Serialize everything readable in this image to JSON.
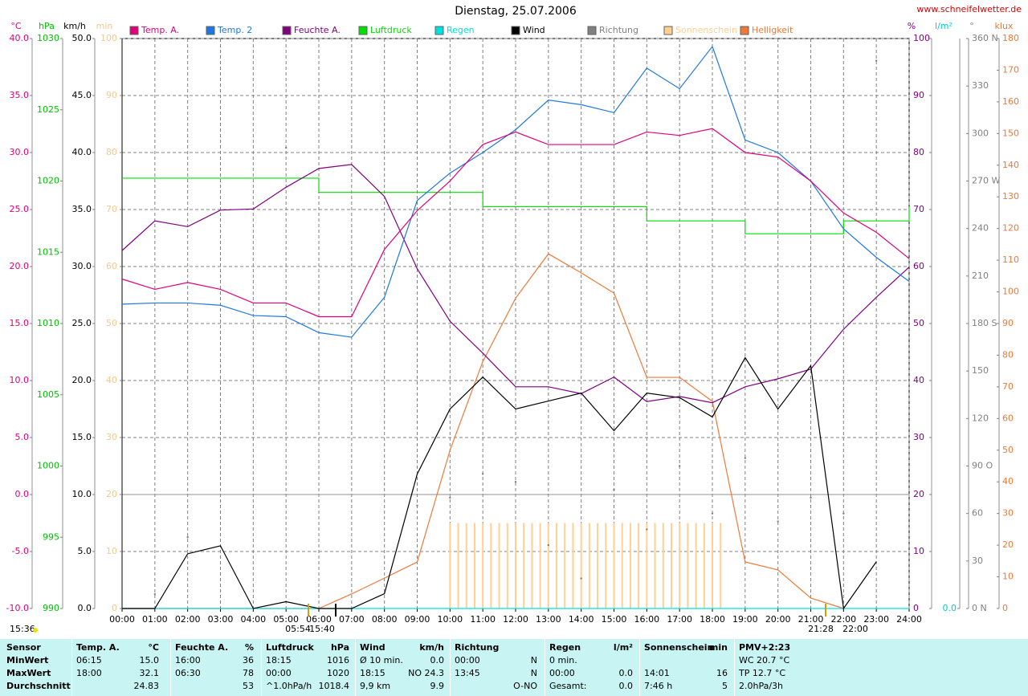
{
  "chart_data": {
    "type": "line",
    "title": "Dienstag, 25.07.2006",
    "source": "www.schneifelwetter.de",
    "xlim": [
      0,
      24
    ],
    "xticks": [
      {
        "value": 0,
        "label": "00:00"
      },
      {
        "value": 1,
        "label": "01:00"
      },
      {
        "value": 2,
        "label": "02:00"
      },
      {
        "value": 3,
        "label": "03:00"
      },
      {
        "value": 4,
        "label": "04:00"
      },
      {
        "value": 5,
        "label": "05:00"
      },
      {
        "value": 6,
        "label": "06:00"
      },
      {
        "value": 7,
        "label": "07:00"
      },
      {
        "value": 8,
        "label": "08:00"
      },
      {
        "value": 9,
        "label": "09:00"
      },
      {
        "value": 10,
        "label": "10:00"
      },
      {
        "value": 11,
        "label": "11:00"
      },
      {
        "value": 12,
        "label": "12:00"
      },
      {
        "value": 13,
        "label": "13:00"
      },
      {
        "value": 14,
        "label": "14:00"
      },
      {
        "value": 15,
        "label": "15:00"
      },
      {
        "value": 16,
        "label": "16:00"
      },
      {
        "value": 17,
        "label": "17:00"
      },
      {
        "value": 18,
        "label": "18:00"
      },
      {
        "value": 19,
        "label": "19:00"
      },
      {
        "value": 20,
        "label": "20:00"
      },
      {
        "value": 21,
        "label": "21:00"
      },
      {
        "value": 22,
        "label": "22:00"
      },
      {
        "value": 23,
        "label": "23:00"
      },
      {
        "value": 24,
        "label": "24:00"
      }
    ],
    "grid": true,
    "axes": [
      {
        "id": "temp",
        "label": "°C",
        "color": "#e0007a",
        "lim": [
          -10,
          40
        ],
        "ticks": [
          {
            "value": 40,
            "label": "40.0"
          },
          {
            "value": 35,
            "label": "35.0"
          },
          {
            "value": 30,
            "label": "30.0"
          },
          {
            "value": 25,
            "label": "25.0"
          },
          {
            "value": 20,
            "label": "20.0"
          },
          {
            "value": 15,
            "label": "15.0"
          },
          {
            "value": 10,
            "label": "10.0"
          },
          {
            "value": 5,
            "label": "5.0"
          },
          {
            "value": 0,
            "label": "0.0"
          },
          {
            "value": -5,
            "label": "-5.0"
          },
          {
            "value": -10,
            "label": "-10.0"
          }
        ]
      },
      {
        "id": "press",
        "label": "hPa",
        "color": "#00c000",
        "lim": [
          990,
          1030
        ],
        "ticks": [
          1030,
          1025,
          1020,
          1015,
          1010,
          1005,
          1000,
          995,
          990
        ]
      },
      {
        "id": "wind",
        "label": "km/h",
        "color": "#000000",
        "lim": [
          0,
          50
        ],
        "ticks": [
          {
            "value": 50,
            "label": "50.0"
          },
          {
            "value": 45,
            "label": "45.0"
          },
          {
            "value": 40,
            "label": "40.0"
          },
          {
            "value": 35,
            "label": "35.0"
          },
          {
            "value": 30,
            "label": "30.0"
          },
          {
            "value": 25,
            "label": "25.0"
          },
          {
            "value": 20,
            "label": "20.0"
          },
          {
            "value": 15,
            "label": "15.0"
          },
          {
            "value": 10,
            "label": "10.0"
          },
          {
            "value": 5,
            "label": "5.0"
          },
          {
            "value": 0,
            "label": "0.0"
          }
        ]
      },
      {
        "id": "min",
        "label": "min",
        "color": "#f0c890",
        "lim": [
          0,
          100
        ],
        "ticks": [
          100,
          90,
          80,
          70,
          60,
          50,
          40,
          30,
          20,
          10,
          0
        ]
      },
      {
        "id": "hum",
        "label": "%",
        "color": "#800080",
        "lim": [
          0,
          100
        ],
        "ticks": [
          100,
          90,
          80,
          70,
          60,
          50,
          40,
          30,
          20,
          10,
          0
        ]
      },
      {
        "id": "rain",
        "label": "l/m²",
        "color": "#00c8d8",
        "lim": [
          0,
          10
        ],
        "ticks": [
          {
            "value": 0,
            "label": "0.0"
          }
        ]
      },
      {
        "id": "dir",
        "label": "°",
        "color": "#808080",
        "lim": [
          0,
          360
        ],
        "ticks": [
          {
            "value": 360,
            "label": "360 N"
          },
          {
            "value": 330,
            "label": "330"
          },
          {
            "value": 300,
            "label": "300"
          },
          {
            "value": 270,
            "label": "270 W"
          },
          {
            "value": 240,
            "label": "240"
          },
          {
            "value": 210,
            "label": "210"
          },
          {
            "value": 180,
            "label": "180 S"
          },
          {
            "value": 150,
            "label": "150"
          },
          {
            "value": 120,
            "label": "120"
          },
          {
            "value": 90,
            "label": "90 O"
          },
          {
            "value": 60,
            "label": "60"
          },
          {
            "value": 30,
            "label": "30"
          },
          {
            "value": 0,
            "label": "0 N"
          }
        ]
      },
      {
        "id": "lux",
        "label": "klux",
        "color": "#f07838",
        "lim": [
          0,
          180
        ],
        "ticks": [
          180,
          170,
          160,
          150,
          140,
          130,
          120,
          110,
          100,
          90,
          80,
          70,
          60,
          50,
          40,
          30,
          20,
          10,
          0
        ]
      }
    ],
    "x": [
      0,
      1,
      2,
      3,
      4,
      5,
      6,
      7,
      8,
      9,
      10,
      11,
      12,
      13,
      14,
      15,
      16,
      17,
      18,
      19,
      20,
      21,
      22,
      23,
      24
    ],
    "series": [
      {
        "name": "Temp. A.",
        "color": "#e0007a",
        "axis": "temp",
        "style": "line",
        "values": [
          18.9,
          18.0,
          18.6,
          18.0,
          16.8,
          16.8,
          15.6,
          15.6,
          21.5,
          24.9,
          27.5,
          30.7,
          31.8,
          30.7,
          30.7,
          30.7,
          31.8,
          31.5,
          32.1,
          30.0,
          29.6,
          27.5,
          24.7,
          23.0,
          20.7
        ]
      },
      {
        "name": "Temp. 2",
        "color": "#1e78e0",
        "axis": "temp",
        "style": "line",
        "values": [
          16.7,
          16.8,
          16.8,
          16.6,
          15.7,
          15.6,
          14.2,
          13.8,
          17.3,
          25.8,
          28.2,
          30.0,
          32.0,
          34.6,
          34.2,
          33.5,
          37.4,
          35.6,
          39.3,
          31.1,
          30.0,
          27.5,
          23.3,
          20.8,
          18.7
        ]
      },
      {
        "name": "Feuchte A.",
        "color": "#800080",
        "axis": "hum",
        "style": "line",
        "values": [
          62.8,
          68.0,
          67.0,
          69.9,
          70.1,
          73.9,
          77.2,
          77.9,
          72.3,
          59.6,
          50.4,
          44.8,
          38.9,
          38.9,
          37.7,
          40.6,
          36.3,
          37.2,
          36.1,
          38.9,
          40.3,
          42.0,
          49.0,
          54.6,
          59.9
        ]
      },
      {
        "name": "Luftdruck",
        "color": "#00e000",
        "axis": "press",
        "style": "step",
        "values": [
          1020.2,
          1020.2,
          1020.2,
          1020.2,
          1020.2,
          1020.2,
          1019.2,
          1019.2,
          1019.2,
          1019.2,
          1019.2,
          1018.2,
          1018.2,
          1018.2,
          1018.2,
          1018.2,
          1017.2,
          1017.2,
          1017.2,
          1016.3,
          1016.3,
          1016.3,
          1017.2,
          1017.2,
          1018.2
        ]
      },
      {
        "name": "Regen",
        "color": "#00e0e0",
        "axis": "rain",
        "style": "line",
        "values": [
          0,
          0,
          0,
          0,
          0,
          0,
          0,
          0,
          0,
          0,
          0,
          0,
          0,
          0,
          0,
          0,
          0,
          0,
          0,
          0,
          0,
          0,
          0,
          0,
          0
        ]
      },
      {
        "name": "Wind",
        "color": "#000000",
        "axis": "wind",
        "style": "line",
        "values": [
          0,
          0,
          4.8,
          5.5,
          0,
          0.6,
          0,
          0,
          1.3,
          11.8,
          17.5,
          20.3,
          17.5,
          18.2,
          18.9,
          15.6,
          18.9,
          18.5,
          16.8,
          22.0,
          17.5,
          21.3,
          0,
          4.1,
          null
        ]
      },
      {
        "name": "Richtung",
        "color": "#808080",
        "axis": "dir",
        "style": "dots",
        "values": [
          null,
          9,
          45,
          null,
          null,
          291,
          null,
          null,
          null,
          65,
          70,
          85,
          80,
          40,
          19,
          75,
          50,
          90,
          60,
          95,
          55,
          70,
          60,
          346,
          null
        ]
      },
      {
        "name": "Sonnenschein",
        "color": "#ffd090",
        "axis": "min",
        "style": "bars",
        "x": [
          10,
          10.25,
          10.5,
          10.75,
          11,
          11.25,
          11.5,
          11.75,
          12,
          12.25,
          12.5,
          12.75,
          13,
          13.25,
          13.5,
          13.75,
          14,
          14.25,
          14.5,
          14.75,
          15,
          15.25,
          15.5,
          15.75,
          16,
          16.25,
          16.5,
          16.75,
          17,
          17.25,
          17.5,
          17.75,
          18,
          18.25
        ],
        "values": [
          15,
          15,
          15,
          15,
          15,
          15,
          15,
          15,
          15,
          15,
          15,
          15,
          15,
          15,
          15,
          15,
          15,
          15,
          15,
          15,
          15,
          15,
          15,
          15,
          15,
          15,
          15,
          15,
          15,
          15,
          15,
          15,
          15,
          15
        ]
      },
      {
        "name": "Helligkeit",
        "color": "#f07838",
        "axis": "lux",
        "style": "line",
        "values": [
          0,
          0,
          0,
          0,
          0,
          0,
          0,
          4.6,
          9.6,
          14.7,
          50,
          78,
          98,
          112,
          106,
          99.6,
          73,
          73,
          65.4,
          14.7,
          12.2,
          3.3,
          0,
          null,
          null
        ]
      }
    ],
    "annotations": [
      "15:36",
      "05:54",
      "15:40",
      "21:28",
      "22:00"
    ]
  },
  "stats": {
    "row_labels": [
      "Sensor",
      "MinWert",
      "MaxWert",
      "Durchschnitt"
    ],
    "columns": [
      {
        "header": [
          "Temp. A.",
          "°C"
        ],
        "cells": [
          [
            "06:15",
            "15.0"
          ],
          [
            "18:00",
            "32.1"
          ],
          [
            null,
            "24.83"
          ]
        ]
      },
      {
        "header": [
          "Feuchte A.",
          "%"
        ],
        "cells": [
          [
            "16:00",
            "36"
          ],
          [
            "06:30",
            "78"
          ],
          [
            null,
            "53"
          ]
        ]
      },
      {
        "header": [
          "Luftdruck",
          "hPa"
        ],
        "cells": [
          [
            "18:15",
            "1016"
          ],
          [
            "00:00",
            "1020"
          ],
          [
            "^1.0hPa/h",
            "1018.4"
          ]
        ]
      },
      {
        "header": [
          "Wind",
          "km/h"
        ],
        "cells": [
          [
            "Ø 10 min.",
            "0.0"
          ],
          [
            "18:15",
            "NO 24.3"
          ],
          [
            "9,9 km",
            "9.9"
          ]
        ]
      },
      {
        "header": [
          "Richtung"
        ],
        "cells": [
          [
            "00:00",
            "N"
          ],
          [
            "13:45",
            "N"
          ],
          [
            null,
            "O-NO"
          ]
        ]
      },
      {
        "header": [
          "Regen",
          "l/m²"
        ],
        "cells": [
          [
            "0 min."
          ],
          [
            "00:00",
            "0.0"
          ],
          [
            "Gesamt:",
            "0.0"
          ]
        ]
      },
      {
        "header": [
          "Sonnenschein",
          "min"
        ],
        "cells": [
          [],
          [
            "14:01",
            "16"
          ],
          [
            "7:46 h",
            "5"
          ]
        ]
      },
      {
        "header": [
          "PMV+2:23"
        ],
        "cells": [
          [
            "WC 20.7 °C"
          ],
          [
            "TP 12.7 °C"
          ],
          [
            "2.0hPa/3h"
          ]
        ]
      }
    ]
  }
}
